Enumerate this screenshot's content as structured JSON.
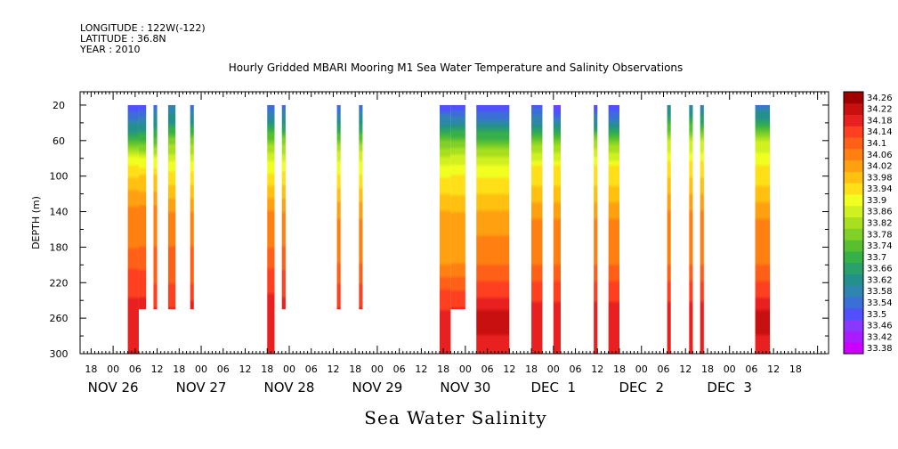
{
  "header": {
    "longitude": "LONGITUDE : 122W(-122)",
    "latitude": "LATITUDE : 36.8N",
    "year": "YEAR : 2010"
  },
  "chart_data": {
    "type": "heatmap",
    "title": "Hourly Gridded MBARI Mooring M1 Sea Water Temperature and Salinity Observations",
    "xlabel": "Sea Water Salinity",
    "ylabel": "DEPTH (m)",
    "x_unit": "hours since NOV 26 00:00",
    "xlim": [
      -9,
      195
    ],
    "ylim": [
      300,
      5
    ],
    "y_ticks": [
      20,
      60,
      100,
      140,
      180,
      220,
      260,
      300
    ],
    "x_ticks": [
      {
        "h": -6,
        "label": "18"
      },
      {
        "h": 0,
        "label": "00"
      },
      {
        "h": 6,
        "label": "06"
      },
      {
        "h": 12,
        "label": "12"
      },
      {
        "h": 18,
        "label": "18"
      },
      {
        "h": 24,
        "label": "00"
      },
      {
        "h": 30,
        "label": "06"
      },
      {
        "h": 36,
        "label": "12"
      },
      {
        "h": 42,
        "label": "18"
      },
      {
        "h": 48,
        "label": "00"
      },
      {
        "h": 54,
        "label": "06"
      },
      {
        "h": 60,
        "label": "12"
      },
      {
        "h": 66,
        "label": "18"
      },
      {
        "h": 72,
        "label": "00"
      },
      {
        "h": 78,
        "label": "06"
      },
      {
        "h": 84,
        "label": "12"
      },
      {
        "h": 90,
        "label": "18"
      },
      {
        "h": 96,
        "label": "00"
      },
      {
        "h": 102,
        "label": "06"
      },
      {
        "h": 108,
        "label": "12"
      },
      {
        "h": 114,
        "label": "18"
      },
      {
        "h": 120,
        "label": "00"
      },
      {
        "h": 126,
        "label": "06"
      },
      {
        "h": 132,
        "label": "12"
      },
      {
        "h": 138,
        "label": "18"
      },
      {
        "h": 144,
        "label": "00"
      },
      {
        "h": 150,
        "label": "06"
      },
      {
        "h": 156,
        "label": "12"
      },
      {
        "h": 162,
        "label": "18"
      },
      {
        "h": 168,
        "label": "00"
      },
      {
        "h": 174,
        "label": "06"
      },
      {
        "h": 180,
        "label": "12"
      },
      {
        "h": 186,
        "label": "18"
      }
    ],
    "date_labels": [
      {
        "h": 0,
        "label": "NOV 26"
      },
      {
        "h": 24,
        "label": "NOV 27"
      },
      {
        "h": 48,
        "label": "NOV 28"
      },
      {
        "h": 72,
        "label": "NOV 29"
      },
      {
        "h": 96,
        "label": "NOV 30"
      },
      {
        "h": 120,
        "label": "DEC  1"
      },
      {
        "h": 144,
        "label": "DEC  2"
      },
      {
        "h": 168,
        "label": "DEC  3"
      }
    ],
    "colorbar": {
      "levels": [
        "33.38",
        "33.42",
        "33.46",
        "33.5",
        "33.54",
        "33.58",
        "33.62",
        "33.66",
        "33.7",
        "33.74",
        "33.78",
        "33.82",
        "33.86",
        "33.9",
        "33.94",
        "33.98",
        "34.02",
        "34.06",
        "34.1",
        "34.14",
        "34.18",
        "34.22",
        "34.26"
      ],
      "colors": [
        "#cc00ff",
        "#a81cff",
        "#8a38ff",
        "#5050ff",
        "#3c6ed8",
        "#2f85b0",
        "#24908c",
        "#2aa06a",
        "#38b048",
        "#58c030",
        "#80d028",
        "#a8e020",
        "#d0f020",
        "#f0ff20",
        "#ffe018",
        "#ffc010",
        "#ffa010",
        "#ff8010",
        "#ff6018",
        "#ff4020",
        "#e82020",
        "#c81010",
        "#a00000"
      ]
    },
    "columns": [
      {
        "h_start": 4,
        "h_end": 7,
        "max_depth": 300,
        "salinity": [
          [
            20,
            33.52
          ],
          [
            40,
            33.6
          ],
          [
            60,
            33.74
          ],
          [
            80,
            33.9
          ],
          [
            100,
            33.98
          ],
          [
            140,
            34.08
          ],
          [
            180,
            34.1
          ],
          [
            220,
            34.16
          ],
          [
            250,
            34.2
          ],
          [
            300,
            34.22
          ]
        ]
      },
      {
        "h_start": 7,
        "h_end": 9,
        "max_depth": 250,
        "salinity": [
          [
            20,
            33.52
          ],
          [
            40,
            33.6
          ],
          [
            60,
            33.74
          ],
          [
            80,
            33.9
          ],
          [
            100,
            33.98
          ],
          [
            140,
            34.08
          ],
          [
            180,
            34.1
          ],
          [
            220,
            34.16
          ],
          [
            250,
            34.2
          ]
        ]
      },
      {
        "h_start": 11,
        "h_end": 12,
        "max_depth": 250,
        "salinity": [
          [
            20,
            33.56
          ],
          [
            40,
            33.64
          ],
          [
            60,
            33.76
          ],
          [
            80,
            33.9
          ],
          [
            100,
            33.98
          ],
          [
            140,
            34.08
          ],
          [
            180,
            34.1
          ],
          [
            220,
            34.14
          ],
          [
            250,
            34.18
          ]
        ]
      },
      {
        "h_start": 15,
        "h_end": 17,
        "max_depth": 250,
        "salinity": [
          [
            20,
            33.58
          ],
          [
            40,
            33.66
          ],
          [
            60,
            33.8
          ],
          [
            90,
            33.92
          ],
          [
            110,
            33.98
          ],
          [
            140,
            34.06
          ],
          [
            180,
            34.1
          ],
          [
            220,
            34.14
          ],
          [
            250,
            34.18
          ]
        ]
      },
      {
        "h_start": 21,
        "h_end": 22,
        "max_depth": 250,
        "salinity": [
          [
            20,
            33.56
          ],
          [
            40,
            33.66
          ],
          [
            60,
            33.8
          ],
          [
            90,
            33.92
          ],
          [
            110,
            33.98
          ],
          [
            140,
            34.06
          ],
          [
            180,
            34.1
          ],
          [
            220,
            34.14
          ],
          [
            250,
            34.2
          ]
        ]
      },
      {
        "h_start": 42,
        "h_end": 44,
        "max_depth": 300,
        "salinity": [
          [
            20,
            33.54
          ],
          [
            40,
            33.64
          ],
          [
            60,
            33.8
          ],
          [
            90,
            33.92
          ],
          [
            110,
            33.98
          ],
          [
            140,
            34.06
          ],
          [
            180,
            34.1
          ],
          [
            220,
            34.16
          ],
          [
            260,
            34.22
          ],
          [
            300,
            34.18
          ]
        ]
      },
      {
        "h_start": 46,
        "h_end": 47,
        "max_depth": 250,
        "salinity": [
          [
            20,
            33.56
          ],
          [
            40,
            33.64
          ],
          [
            60,
            33.8
          ],
          [
            90,
            33.92
          ],
          [
            110,
            33.98
          ],
          [
            140,
            34.06
          ],
          [
            180,
            34.1
          ],
          [
            220,
            34.16
          ],
          [
            250,
            34.2
          ]
        ]
      },
      {
        "h_start": 61,
        "h_end": 62,
        "max_depth": 250,
        "salinity": [
          [
            20,
            33.54
          ],
          [
            40,
            33.64
          ],
          [
            70,
            33.86
          ],
          [
            100,
            33.94
          ],
          [
            130,
            34.02
          ],
          [
            160,
            34.08
          ],
          [
            200,
            34.1
          ],
          [
            230,
            34.16
          ],
          [
            250,
            34.18
          ]
        ]
      },
      {
        "h_start": 67,
        "h_end": 68,
        "max_depth": 250,
        "salinity": [
          [
            20,
            33.56
          ],
          [
            40,
            33.64
          ],
          [
            70,
            33.86
          ],
          [
            100,
            33.94
          ],
          [
            130,
            34.02
          ],
          [
            160,
            34.08
          ],
          [
            200,
            34.1
          ],
          [
            230,
            34.16
          ],
          [
            250,
            34.18
          ]
        ]
      },
      {
        "h_start": 89,
        "h_end": 92,
        "max_depth": 300,
        "salinity": [
          [
            20,
            33.5
          ],
          [
            40,
            33.62
          ],
          [
            60,
            33.78
          ],
          [
            90,
            33.92
          ],
          [
            120,
            33.98
          ],
          [
            150,
            34.04
          ],
          [
            200,
            34.06
          ],
          [
            230,
            34.14
          ],
          [
            260,
            34.2
          ],
          [
            300,
            34.2
          ]
        ]
      },
      {
        "h_start": 92,
        "h_end": 96,
        "max_depth": 250,
        "salinity": [
          [
            20,
            33.5
          ],
          [
            40,
            33.62
          ],
          [
            60,
            33.78
          ],
          [
            90,
            33.92
          ],
          [
            120,
            33.98
          ],
          [
            150,
            34.04
          ],
          [
            200,
            34.06
          ],
          [
            230,
            34.14
          ],
          [
            250,
            34.18
          ]
        ]
      },
      {
        "h_start": 99,
        "h_end": 108,
        "max_depth": 300,
        "salinity": [
          [
            20,
            33.5
          ],
          [
            40,
            33.6
          ],
          [
            60,
            33.76
          ],
          [
            90,
            33.92
          ],
          [
            120,
            33.98
          ],
          [
            150,
            34.04
          ],
          [
            200,
            34.1
          ],
          [
            230,
            34.16
          ],
          [
            260,
            34.24
          ],
          [
            300,
            34.2
          ]
        ]
      },
      {
        "h_start": 114,
        "h_end": 117,
        "max_depth": 300,
        "salinity": [
          [
            20,
            33.52
          ],
          [
            40,
            33.62
          ],
          [
            60,
            33.8
          ],
          [
            90,
            33.94
          ],
          [
            120,
            34.0
          ],
          [
            150,
            34.06
          ],
          [
            200,
            34.1
          ],
          [
            230,
            34.16
          ],
          [
            260,
            34.22
          ],
          [
            300,
            34.2
          ]
        ]
      },
      {
        "h_start": 120,
        "h_end": 122,
        "max_depth": 300,
        "salinity": [
          [
            20,
            33.48
          ],
          [
            40,
            33.6
          ],
          [
            60,
            33.8
          ],
          [
            90,
            33.94
          ],
          [
            120,
            34.0
          ],
          [
            150,
            34.06
          ],
          [
            200,
            34.1
          ],
          [
            230,
            34.16
          ],
          [
            260,
            34.22
          ],
          [
            300,
            34.2
          ]
        ]
      },
      {
        "h_start": 131,
        "h_end": 132,
        "max_depth": 300,
        "salinity": [
          [
            20,
            33.5
          ],
          [
            40,
            33.62
          ],
          [
            60,
            33.82
          ],
          [
            90,
            33.94
          ],
          [
            120,
            34.0
          ],
          [
            150,
            34.06
          ],
          [
            200,
            34.1
          ],
          [
            230,
            34.16
          ],
          [
            260,
            34.22
          ],
          [
            300,
            34.2
          ]
        ]
      },
      {
        "h_start": 135,
        "h_end": 138,
        "max_depth": 300,
        "salinity": [
          [
            20,
            33.5
          ],
          [
            40,
            33.6
          ],
          [
            60,
            33.8
          ],
          [
            90,
            33.94
          ],
          [
            120,
            34.0
          ],
          [
            150,
            34.06
          ],
          [
            200,
            34.1
          ],
          [
            230,
            34.16
          ],
          [
            260,
            34.22
          ],
          [
            300,
            34.2
          ]
        ]
      },
      {
        "h_start": 151,
        "h_end": 152,
        "max_depth": 300,
        "salinity": [
          [
            20,
            33.6
          ],
          [
            40,
            33.72
          ],
          [
            60,
            33.86
          ],
          [
            90,
            33.96
          ],
          [
            120,
            34.02
          ],
          [
            150,
            34.08
          ],
          [
            200,
            34.1
          ],
          [
            230,
            34.16
          ],
          [
            260,
            34.22
          ],
          [
            300,
            34.2
          ]
        ]
      },
      {
        "h_start": 157,
        "h_end": 158,
        "max_depth": 300,
        "salinity": [
          [
            20,
            33.6
          ],
          [
            40,
            33.72
          ],
          [
            60,
            33.86
          ],
          [
            90,
            33.96
          ],
          [
            120,
            34.02
          ],
          [
            150,
            34.08
          ],
          [
            200,
            34.1
          ],
          [
            230,
            34.16
          ],
          [
            260,
            34.22
          ],
          [
            300,
            34.2
          ]
        ]
      },
      {
        "h_start": 160,
        "h_end": 161,
        "max_depth": 300,
        "salinity": [
          [
            20,
            33.58
          ],
          [
            40,
            33.7
          ],
          [
            60,
            33.86
          ],
          [
            90,
            33.96
          ],
          [
            120,
            34.02
          ],
          [
            150,
            34.08
          ],
          [
            200,
            34.1
          ],
          [
            230,
            34.16
          ],
          [
            260,
            34.22
          ],
          [
            300,
            34.2
          ]
        ]
      },
      {
        "h_start": 175,
        "h_end": 179,
        "max_depth": 300,
        "salinity": [
          [
            20,
            33.56
          ],
          [
            40,
            33.7
          ],
          [
            60,
            33.86
          ],
          [
            90,
            33.94
          ],
          [
            120,
            34.0
          ],
          [
            150,
            34.06
          ],
          [
            200,
            34.1
          ],
          [
            230,
            34.16
          ],
          [
            260,
            34.24
          ],
          [
            300,
            34.2
          ]
        ]
      }
    ]
  }
}
